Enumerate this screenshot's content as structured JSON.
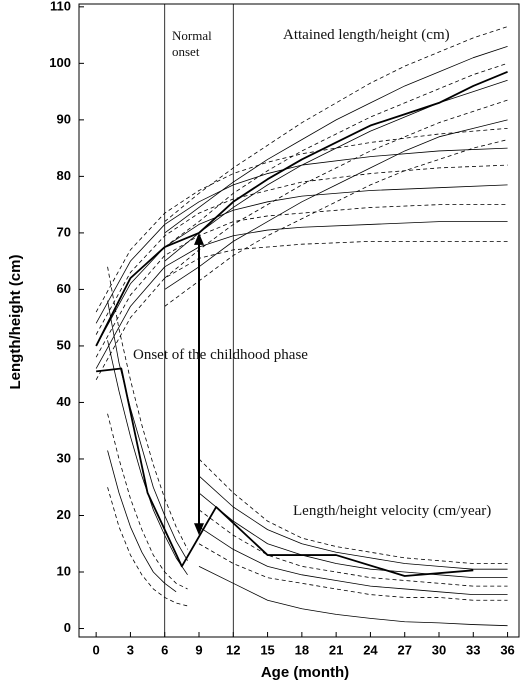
{
  "chart_data": {
    "type": "line",
    "x_label": "Age (month)",
    "y_label": "Length/height (cm)",
    "annotations": [
      "Normal onset",
      "Attained length/height (cm)",
      "Onset of the childhood phase",
      "Length/height velocity (cm/year)"
    ],
    "xlim": [
      -1.5,
      37
    ],
    "ylim": [
      -1.5,
      110.5
    ],
    "xticks": [
      0,
      3,
      6,
      9,
      12,
      15,
      18,
      21,
      24,
      27,
      30,
      33,
      36
    ],
    "yticks": [
      0,
      10,
      20,
      30,
      40,
      50,
      60,
      70,
      80,
      90,
      100,
      110
    ],
    "vlines": [
      6,
      12
    ],
    "arrow": {
      "x": 9,
      "from": 70,
      "to": 16.5
    },
    "series": [
      {
        "x": [
          0,
          3,
          6,
          9,
          12,
          15,
          18,
          21,
          24,
          27,
          30,
          33,
          36
        ],
        "values": [
          50,
          62,
          67.5,
          70,
          75.5,
          79.5,
          83,
          86,
          89,
          91,
          93,
          96,
          98.5
        ],
        "color": "#000",
        "width": 1.8
      },
      {
        "x": [
          0,
          2.2,
          4.5,
          7.5,
          10.5,
          15,
          21,
          27,
          33
        ],
        "values": [
          45.5,
          46,
          24,
          11,
          21.5,
          13,
          13,
          9.3,
          10.3
        ],
        "color": "#000",
        "width": 1.8
      },
      {
        "x": [
          0,
          3,
          6,
          9,
          12,
          15,
          18,
          24,
          30,
          36
        ],
        "values": [
          46,
          57,
          64,
          67.5,
          69.5,
          70.5,
          71,
          71.5,
          72,
          72
        ],
        "color": "#000",
        "width": 0.8
      },
      {
        "x": [
          0,
          3,
          6,
          9,
          12,
          15,
          18,
          24,
          30,
          36
        ],
        "values": [
          50,
          61,
          67.5,
          71.5,
          74,
          75.5,
          76.5,
          77.5,
          78,
          78.5
        ],
        "color": "#000",
        "width": 0.8
      },
      {
        "x": [
          0,
          3,
          6,
          9,
          12,
          15,
          18,
          24,
          30,
          36
        ],
        "values": [
          54,
          65,
          71.5,
          75.5,
          78.5,
          80.5,
          82,
          83.5,
          84.5,
          85
        ],
        "color": "#000",
        "width": 0.8
      },
      {
        "x": [
          0,
          3,
          6,
          9,
          12,
          15,
          18,
          24,
          30,
          36
        ],
        "values": [
          44,
          55,
          62,
          65.5,
          67,
          67.5,
          68,
          68.5,
          68.5,
          68.5
        ],
        "color": "#000",
        "width": 0.8,
        "dash": true
      },
      {
        "x": [
          0,
          3,
          6,
          9,
          12,
          15,
          18,
          24,
          30,
          36
        ],
        "values": [
          48,
          59,
          66,
          69.5,
          72,
          73,
          73.5,
          74.5,
          75,
          75
        ],
        "color": "#000",
        "width": 0.8,
        "dash": true
      },
      {
        "x": [
          0,
          3,
          6,
          9,
          12,
          15,
          18,
          24,
          30,
          36
        ],
        "values": [
          52,
          63,
          69.5,
          73.5,
          76,
          77.5,
          79,
          80.5,
          81.5,
          82
        ],
        "color": "#000",
        "width": 0.8,
        "dash": true
      },
      {
        "x": [
          0,
          3,
          6,
          9,
          12,
          15,
          18,
          24,
          30,
          36
        ],
        "values": [
          56,
          67,
          73.5,
          77.5,
          80.5,
          82.5,
          84,
          86,
          87.5,
          88.5
        ],
        "color": "#000",
        "width": 0.8,
        "dash": true
      },
      {
        "x": [
          6,
          9,
          12,
          15,
          18,
          21,
          24,
          27,
          30,
          33,
          36
        ],
        "values": [
          70,
          74.5,
          79,
          83,
          86.5,
          90,
          93,
          96,
          98.5,
          101,
          103
        ],
        "color": "#000",
        "width": 0.8
      },
      {
        "x": [
          6,
          9,
          12,
          15,
          18,
          21,
          24,
          27,
          30,
          33,
          36
        ],
        "values": [
          65,
          70,
          74.5,
          78.5,
          82,
          85,
          88,
          90.5,
          93,
          95,
          97
        ],
        "color": "#000",
        "width": 0.8
      },
      {
        "x": [
          6,
          9,
          12,
          15,
          18,
          21,
          24,
          27,
          30,
          33,
          36
        ],
        "values": [
          60,
          64,
          68.5,
          72,
          75.5,
          78.5,
          81.5,
          84.5,
          87,
          88.5,
          90
        ],
        "color": "#000",
        "width": 0.8
      },
      {
        "x": [
          6,
          9,
          12,
          15,
          18,
          21,
          24,
          27,
          30,
          33,
          36
        ],
        "values": [
          72,
          77,
          81.5,
          85.5,
          89.5,
          93,
          96.5,
          99.5,
          102,
          104.5,
          106.5
        ],
        "color": "#000",
        "width": 0.8,
        "dash": true
      },
      {
        "x": [
          6,
          9,
          12,
          15,
          18,
          21,
          24,
          27,
          30,
          33,
          36
        ],
        "values": [
          67.5,
          72,
          77,
          81,
          84.5,
          87.5,
          90.5,
          93,
          95.5,
          98,
          100
        ],
        "color": "#000",
        "width": 0.8,
        "dash": true
      },
      {
        "x": [
          6,
          9,
          12,
          15,
          18,
          21,
          24,
          27,
          30,
          33,
          36
        ],
        "values": [
          62,
          67,
          71.5,
          75,
          78.5,
          81.5,
          84.5,
          87,
          89.5,
          91.5,
          93.5
        ],
        "color": "#000",
        "width": 0.8,
        "dash": true
      },
      {
        "x": [
          6,
          9,
          12,
          15,
          18,
          21,
          24,
          27,
          30,
          33,
          36
        ],
        "values": [
          57,
          61.5,
          66,
          69.5,
          72.5,
          75.5,
          78.5,
          81,
          83,
          85,
          86.5
        ],
        "color": "#000",
        "width": 0.8,
        "dash": true
      },
      {
        "x": [
          1,
          2,
          3,
          4,
          5,
          6,
          7,
          8
        ],
        "values": [
          64,
          53,
          44,
          36,
          29,
          23,
          18,
          14
        ],
        "color": "#000",
        "width": 0.8,
        "dash": true
      },
      {
        "x": [
          1,
          2,
          3,
          4,
          5,
          6,
          7,
          8
        ],
        "values": [
          58,
          47,
          39,
          32,
          25,
          20,
          15.5,
          12
        ],
        "color": "#000",
        "width": 0.8
      },
      {
        "x": [
          1,
          2,
          3,
          4,
          5,
          6,
          7,
          8
        ],
        "values": [
          51,
          42,
          34,
          27,
          21,
          16.5,
          12.5,
          9.5
        ],
        "color": "#000",
        "width": 0.8
      },
      {
        "x": [
          1,
          2,
          3,
          4,
          5,
          6,
          7,
          8
        ],
        "values": [
          38,
          30,
          23,
          17.5,
          13,
          10,
          8,
          7
        ],
        "color": "#000",
        "width": 0.8,
        "dash": true
      },
      {
        "x": [
          1,
          2,
          3,
          4,
          5,
          6,
          7
        ],
        "values": [
          31.5,
          24,
          18,
          13.5,
          10,
          8,
          6.5
        ],
        "color": "#000",
        "width": 0.8
      },
      {
        "x": [
          1,
          2,
          3,
          4,
          5,
          6,
          7,
          8
        ],
        "values": [
          25,
          18,
          13,
          9.5,
          7,
          5.5,
          4.5,
          4
        ],
        "color": "#000",
        "width": 0.8,
        "dash": true
      },
      {
        "x": [
          9,
          12,
          15,
          18,
          21,
          24,
          27,
          30,
          33,
          36
        ],
        "values": [
          30,
          24,
          19,
          16,
          14.5,
          13.5,
          12.5,
          12,
          11.5,
          11.5
        ],
        "color": "#000",
        "width": 0.8,
        "dash": true
      },
      {
        "x": [
          9,
          12,
          15,
          18,
          21,
          24,
          27,
          30,
          33,
          36
        ],
        "values": [
          27,
          21.5,
          17.5,
          15,
          13.5,
          12.5,
          11.5,
          11,
          10.5,
          10.5
        ],
        "color": "#000",
        "width": 0.8
      },
      {
        "x": [
          9,
          12,
          15,
          18,
          21,
          24,
          27,
          30,
          33,
          36
        ],
        "values": [
          24,
          19,
          15,
          13,
          11.5,
          10.5,
          10,
          9.5,
          9,
          9
        ],
        "color": "#000",
        "width": 0.8
      },
      {
        "x": [
          9,
          12,
          15,
          18,
          21,
          24,
          27,
          30,
          33,
          36
        ],
        "values": [
          21,
          16.5,
          13,
          11,
          10,
          9,
          8.5,
          8,
          7.5,
          7.5
        ],
        "color": "#000",
        "width": 0.8,
        "dash": true
      },
      {
        "x": [
          9,
          12,
          15,
          18,
          21,
          24,
          27,
          30,
          33,
          36
        ],
        "values": [
          18,
          14,
          11,
          9.5,
          8.5,
          7.5,
          7,
          6.5,
          6,
          6
        ],
        "color": "#000",
        "width": 0.8
      },
      {
        "x": [
          9,
          12,
          15,
          18,
          21,
          24,
          27,
          30,
          33,
          36
        ],
        "values": [
          15,
          11.5,
          9,
          8,
          7,
          6,
          5.5,
          5.5,
          5,
          5
        ],
        "color": "#000",
        "width": 0.8,
        "dash": true
      },
      {
        "x": [
          9,
          12,
          15,
          18,
          21,
          24,
          27,
          30,
          33,
          36
        ],
        "values": [
          11,
          8,
          5,
          3.5,
          2.5,
          1.8,
          1.2,
          1,
          0.7,
          0.5
        ],
        "color": "#000",
        "width": 0.8
      }
    ]
  }
}
